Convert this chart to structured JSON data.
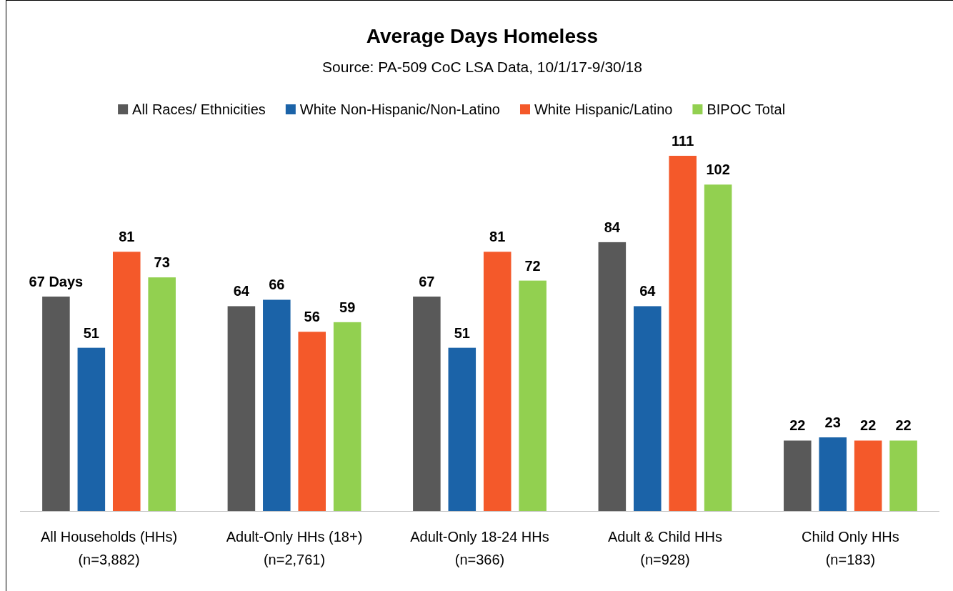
{
  "chart_data": {
    "type": "bar",
    "title": "Average Days Homeless",
    "subtitle": "Source: PA-509 CoC LSA Data, 10/1/17-9/30/18",
    "categories": [
      "All Households (HHs)\n(n=3,882)",
      "Adult-Only HHs (18+)\n(n=2,761)",
      "Adult-Only 18-24 HHs\n(n=366)",
      "Adult & Child HHs\n(n=928)",
      "Child Only HHs\n(n=183)"
    ],
    "series": [
      {
        "name": "All Races/ Ethnicities",
        "color": "#595959",
        "values": [
          67,
          64,
          67,
          84,
          22
        ],
        "value_labels": [
          "67 Days",
          "64",
          "67",
          "84",
          "22"
        ]
      },
      {
        "name": "White Non-Hispanic/Non-Latino",
        "color": "#1b63a8",
        "values": [
          51,
          66,
          51,
          64,
          23
        ],
        "value_labels": [
          "51",
          "66",
          "51",
          "64",
          "23"
        ]
      },
      {
        "name": "White Hispanic/Latino",
        "color": "#f4592a",
        "values": [
          81,
          56,
          81,
          111,
          22
        ],
        "value_labels": [
          "81",
          "56",
          "81",
          "111",
          "22"
        ]
      },
      {
        "name": "BIPOC Total",
        "color": "#92d050",
        "values": [
          73,
          59,
          72,
          102,
          22
        ],
        "value_labels": [
          "73",
          "59",
          "72",
          "102",
          "22"
        ]
      }
    ],
    "legend": "top"
  }
}
